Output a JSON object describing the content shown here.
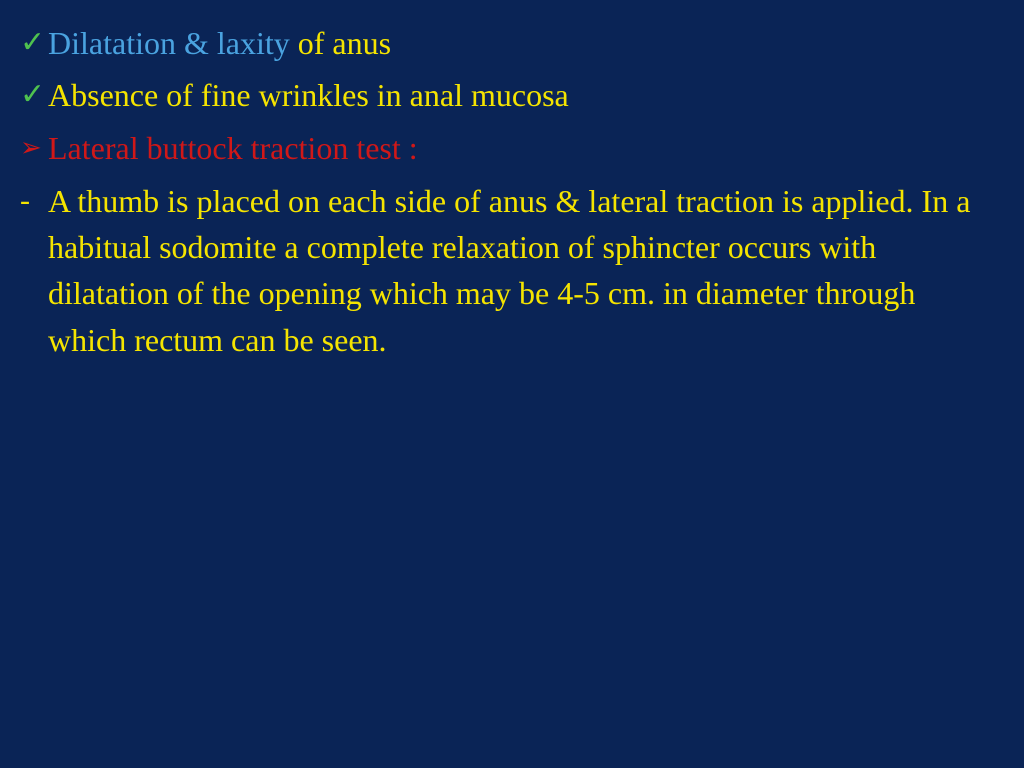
{
  "colors": {
    "background": "#0a2456",
    "yellow": "#f5e400",
    "blue": "#4aa3e0",
    "red": "#d01818",
    "green": "#4fc24f"
  },
  "typography": {
    "font_family": "Times New Roman",
    "font_size_pt": 32,
    "line_height": 1.45
  },
  "bullets": {
    "check": "✓",
    "arrow": "➢",
    "dash": "-"
  },
  "line1": {
    "part1": "Dilatation & laxity ",
    "part2": "of anus"
  },
  "line2": "Absence of fine wrinkles in anal mucosa",
  "line3": "Lateral buttock traction test :",
  "line4": "A thumb is placed on each side of anus & lateral traction is applied. In a habitual sodomite  a complete relaxation of sphincter occurs with dilatatation of the opening which may be 4-5 cm. in diameter through which rectum can be seen.",
  "line4_fixed": "A thumb is placed on each side of anus & lateral traction is applied. In a habitual sodomite  a complete relaxation of sphincter occurs with dilatation of the opening which may be 4-5 cm. in diameter through which rectum can be seen."
}
